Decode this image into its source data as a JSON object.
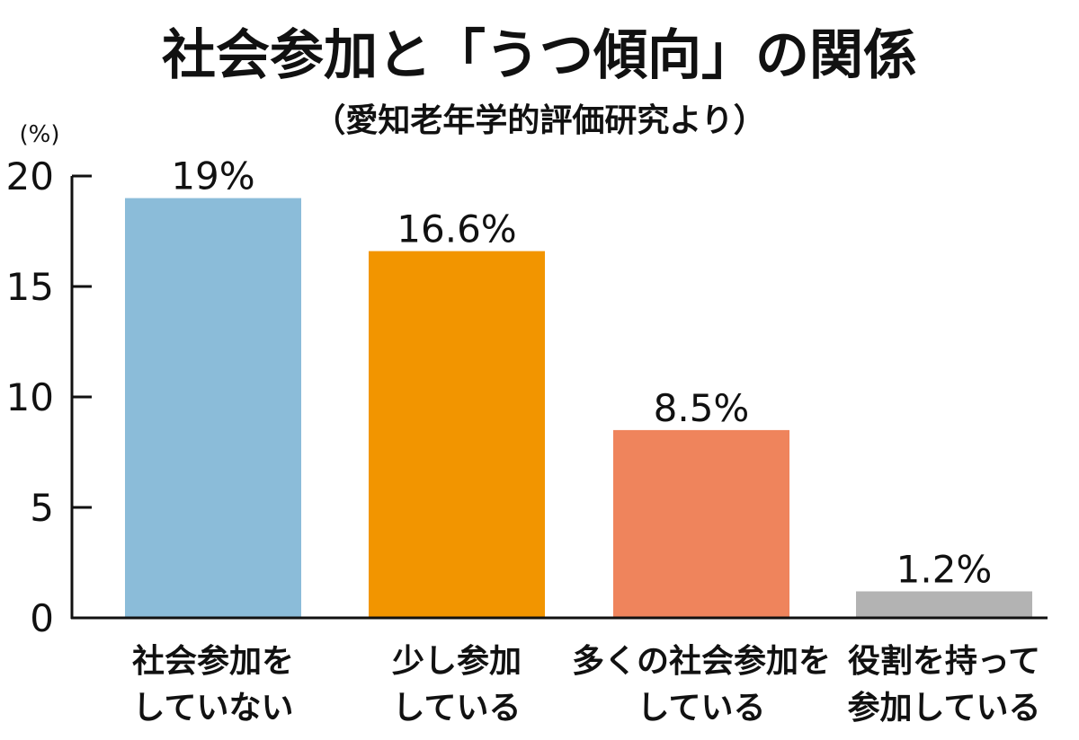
{
  "chart_data": {
    "type": "bar",
    "title": "社会参加と「うつ傾向」の関係",
    "subtitle": "（愛知老年学的評価研究より）",
    "ylabel": "(%)",
    "ylim": [
      0,
      20
    ],
    "yticks": [
      0,
      5,
      10,
      15,
      20
    ],
    "grid": false,
    "legend": "none",
    "categories": [
      [
        "社会参加を",
        "していない"
      ],
      [
        "少し参加",
        "している"
      ],
      [
        "多くの社会参加を",
        "している"
      ],
      [
        "役割を持って",
        "参加している"
      ]
    ],
    "values": [
      19,
      16.6,
      8.5,
      1.2
    ],
    "value_labels": [
      "19%",
      "16.6%",
      "8.5%",
      "1.2%"
    ],
    "colors": [
      "#8bbcd9",
      "#f29500",
      "#ef845c",
      "#b3b3b3"
    ]
  }
}
